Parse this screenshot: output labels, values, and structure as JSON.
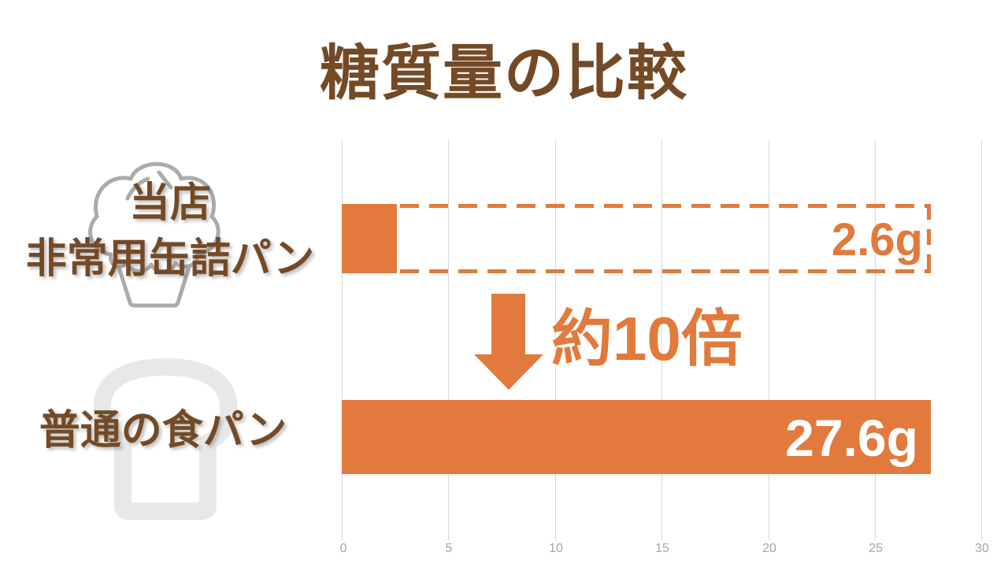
{
  "title": "糖質量の比較",
  "chart_data": {
    "type": "bar",
    "orientation": "horizontal",
    "title": "糖質量の比較",
    "categories": [
      "当店 非常用缶詰パン",
      "普通の食パン"
    ],
    "values": [
      2.6,
      27.6
    ],
    "unit": "g",
    "value_labels": [
      "2.6g",
      "27.6g"
    ],
    "xlim": [
      0,
      30
    ],
    "x_ticks": [
      0,
      5,
      10,
      15,
      20,
      25,
      30
    ],
    "x_tick_labels": [
      "0",
      "5",
      "10",
      "15",
      "20",
      "25",
      "30"
    ],
    "grid": true,
    "legend_position": "none",
    "annotation": {
      "text": "約10倍",
      "arrow": "down"
    },
    "reference_outline": {
      "applies_to_category": "当店 非常用缶詰パン",
      "value": 27.6,
      "style": "dashed"
    }
  },
  "rows": [
    {
      "label_lines": [
        "当店",
        "非常用缶詰パン"
      ],
      "value_label": "2.6g",
      "icon": "muffin-icon"
    },
    {
      "label_lines": [
        "普通の食パン"
      ],
      "value_label": "27.6g",
      "icon": "bread-icon"
    }
  ],
  "colors": {
    "accent_orange": "#E17A3C",
    "label_brown": "#744A26",
    "gridline": "#D9D9D9",
    "axis_text": "#A6A6A6",
    "muffin_outline": "#ABABAB",
    "bread_outline": "#E8E8E8",
    "bar_value_text_on_bar": "#FFFFFF"
  }
}
